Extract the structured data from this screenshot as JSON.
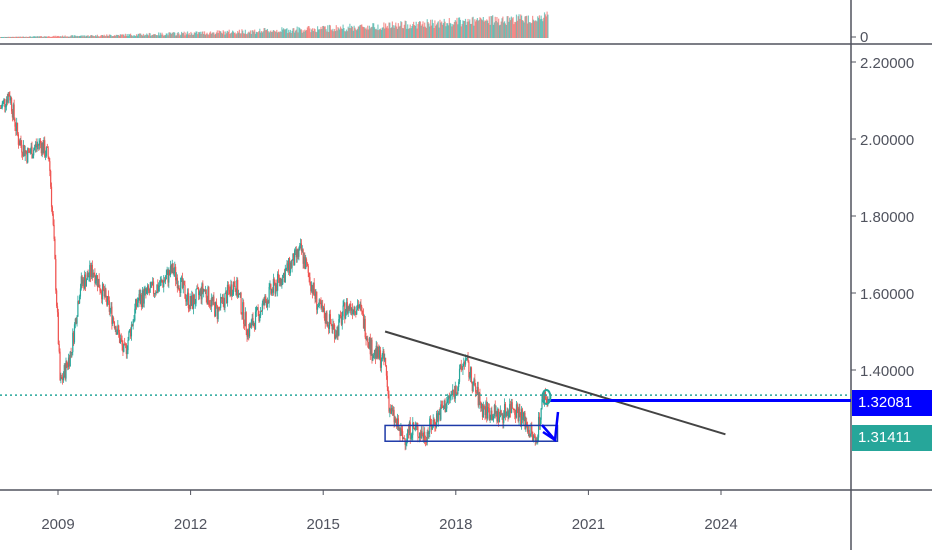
{
  "chart_data": {
    "type": "candlestick",
    "title": "",
    "xlabel": "",
    "ylabel": "",
    "x_ticks": [
      "2009",
      "2012",
      "2015",
      "2018",
      "2021",
      "2024"
    ],
    "x_tick_years": [
      2009,
      2012,
      2015,
      2018,
      2021,
      2024
    ],
    "y_ticks": [
      "2.20000",
      "2.00000",
      "1.80000",
      "1.60000",
      "1.40000"
    ],
    "y_tick_values": [
      2.2,
      2.0,
      1.8,
      1.6,
      1.4
    ],
    "ylim": [
      1.0,
      2.35
    ],
    "xlim": [
      2007.7,
      2027.9
    ],
    "volume_axis_label": "0",
    "price_path": [
      [
        2007.7,
        2.08
      ],
      [
        2007.9,
        2.12
      ],
      [
        2008.1,
        2.0
      ],
      [
        2008.3,
        1.96
      ],
      [
        2008.6,
        1.99
      ],
      [
        2008.8,
        1.95
      ],
      [
        2008.9,
        1.75
      ],
      [
        2009.0,
        1.5
      ],
      [
        2009.05,
        1.36
      ],
      [
        2009.3,
        1.45
      ],
      [
        2009.5,
        1.62
      ],
      [
        2009.8,
        1.66
      ],
      [
        2010.3,
        1.52
      ],
      [
        2010.5,
        1.44
      ],
      [
        2010.8,
        1.58
      ],
      [
        2011.3,
        1.62
      ],
      [
        2011.6,
        1.66
      ],
      [
        2012.0,
        1.57
      ],
      [
        2012.3,
        1.61
      ],
      [
        2012.6,
        1.55
      ],
      [
        2013.0,
        1.63
      ],
      [
        2013.3,
        1.5
      ],
      [
        2013.8,
        1.6
      ],
      [
        2014.5,
        1.71
      ],
      [
        2014.9,
        1.56
      ],
      [
        2015.3,
        1.5
      ],
      [
        2015.5,
        1.56
      ],
      [
        2015.8,
        1.57
      ],
      [
        2016.1,
        1.45
      ],
      [
        2016.4,
        1.42
      ],
      [
        2016.5,
        1.3
      ],
      [
        2016.8,
        1.22
      ],
      [
        2017.0,
        1.25
      ],
      [
        2017.3,
        1.23
      ],
      [
        2017.7,
        1.3
      ],
      [
        2018.0,
        1.35
      ],
      [
        2018.2,
        1.43
      ],
      [
        2018.4,
        1.36
      ],
      [
        2018.6,
        1.3
      ],
      [
        2019.0,
        1.28
      ],
      [
        2019.3,
        1.31
      ],
      [
        2019.6,
        1.26
      ],
      [
        2019.8,
        1.21
      ],
      [
        2019.9,
        1.28
      ],
      [
        2020.0,
        1.34
      ],
      [
        2020.1,
        1.31
      ]
    ],
    "annotations": {
      "trendline": [
        [
          2016.4,
          1.5
        ],
        [
          2024.1,
          1.233
        ]
      ],
      "resistance_level": 1.32081,
      "support_box": {
        "x": [
          2016.4,
          2020.3
        ],
        "y": [
          1.215,
          1.256
        ]
      }
    },
    "price_labels": {
      "level": "1.32081",
      "last": "1.31411"
    },
    "colors": {
      "up": "#26a69a",
      "down": "#ef5350",
      "level": "#0000ff",
      "last": "#26a69a",
      "trend": "#444444",
      "box": "#1e3aa8"
    }
  }
}
